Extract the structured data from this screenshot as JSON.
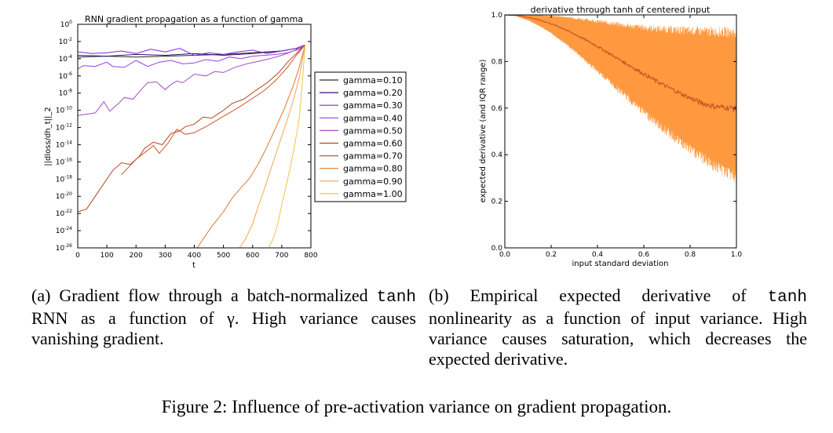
{
  "chart_data": [
    {
      "type": "line",
      "title": "RNN gradient propagation as a function of gamma",
      "xlabel": "t",
      "ylabel": "||dloss/dh_t||_2",
      "xlim": [
        0,
        800
      ],
      "ylim_log10": [
        -26,
        0
      ],
      "log_y": true,
      "grid": false,
      "legend_position": "right (outside plot)",
      "x_ticks": [
        "0",
        "100",
        "200",
        "300",
        "400",
        "500",
        "600",
        "700",
        "800"
      ],
      "y_ticks": [
        {
          "base": "10",
          "exp": "0"
        },
        {
          "base": "10",
          "exp": "-2"
        },
        {
          "base": "10",
          "exp": "-4"
        },
        {
          "base": "10",
          "exp": "-6"
        },
        {
          "base": "10",
          "exp": "-8"
        },
        {
          "base": "10",
          "exp": "-10"
        },
        {
          "base": "10",
          "exp": "-12"
        },
        {
          "base": "10",
          "exp": "-14"
        },
        {
          "base": "10",
          "exp": "-16"
        },
        {
          "base": "10",
          "exp": "-18"
        },
        {
          "base": "10",
          "exp": "-20"
        },
        {
          "base": "10",
          "exp": "-22"
        },
        {
          "base": "10",
          "exp": "-24"
        },
        {
          "base": "10",
          "exp": "-26"
        }
      ],
      "series": [
        {
          "name": "gamma=0.10",
          "color": "#2a2a2a",
          "x": [
            0,
            100,
            200,
            300,
            400,
            500,
            600,
            700,
            750,
            780
          ],
          "log10_y": [
            -3.8,
            -3.7,
            -3.8,
            -3.7,
            -3.6,
            -3.5,
            -3.3,
            -3.1,
            -2.8,
            -2.4
          ]
        },
        {
          "name": "gamma=0.20",
          "color": "#3b0f6f",
          "x": [
            0,
            100,
            200,
            300,
            400,
            500,
            600,
            700,
            750,
            780
          ],
          "log10_y": [
            -3.6,
            -3.7,
            -3.5,
            -3.6,
            -3.4,
            -3.6,
            -3.4,
            -3.1,
            -2.8,
            -2.4
          ]
        },
        {
          "name": "gamma=0.30",
          "color": "#7b2cd4",
          "x": [
            0,
            50,
            100,
            150,
            200,
            250,
            300,
            350,
            400,
            450,
            500,
            550,
            600,
            650,
            700,
            750,
            780
          ],
          "log10_y": [
            -3.2,
            -3.4,
            -3.3,
            -3.1,
            -3.4,
            -2.9,
            -3.2,
            -2.8,
            -3.6,
            -3.3,
            -3.5,
            -3.2,
            -3.0,
            -3.4,
            -3.1,
            -2.8,
            -2.4
          ]
        },
        {
          "name": "gamma=0.40",
          "color": "#9a3fe0",
          "x": [
            0,
            20,
            60,
            100,
            120,
            160,
            200,
            240,
            280,
            320,
            360,
            400,
            440,
            480,
            520,
            560,
            600,
            640,
            680,
            720,
            760,
            780
          ],
          "log10_y": [
            -5.2,
            -4.8,
            -4.9,
            -4.4,
            -4.9,
            -5.0,
            -4.2,
            -4.9,
            -4.4,
            -4.2,
            -4.6,
            -4.5,
            -4.1,
            -4.3,
            -3.8,
            -4.0,
            -3.7,
            -3.6,
            -3.5,
            -3.3,
            -2.9,
            -2.4
          ]
        },
        {
          "name": "gamma=0.50",
          "color": "#a54cc4",
          "x": [
            0,
            20,
            60,
            90,
            110,
            140,
            160,
            190,
            220,
            240,
            270,
            300,
            320,
            340,
            360,
            400,
            440,
            470,
            500,
            540,
            580,
            620,
            660,
            700,
            740,
            780
          ],
          "log10_y": [
            -10.6,
            -10.5,
            -10.3,
            -9.0,
            -10.1,
            -9.2,
            -8.5,
            -8.7,
            -7.5,
            -6.8,
            -6.7,
            -7.6,
            -7.0,
            -6.6,
            -6.8,
            -5.8,
            -6.0,
            -5.5,
            -5.6,
            -5.0,
            -4.6,
            -4.3,
            -4.0,
            -3.6,
            -3.1,
            -2.4
          ]
        },
        {
          "name": "gamma=0.60",
          "color": "#b5441e",
          "x": [
            0,
            30,
            60,
            90,
            120,
            150,
            180,
            210,
            230,
            260,
            290,
            320,
            350,
            370,
            400,
            430,
            460,
            500,
            530,
            570,
            610,
            650,
            690,
            720,
            750,
            780
          ],
          "log10_y": [
            -21.8,
            -21.5,
            -20.0,
            -18.5,
            -17.0,
            -16.1,
            -16.3,
            -15.4,
            -14.4,
            -13.7,
            -14.0,
            -12.7,
            -12.4,
            -11.9,
            -11.6,
            -10.8,
            -10.9,
            -10.0,
            -9.2,
            -8.7,
            -7.7,
            -6.8,
            -5.6,
            -4.4,
            -3.4,
            -2.4
          ]
        },
        {
          "name": "gamma=0.70",
          "color": "#c85a28",
          "x": [
            150,
            200,
            230,
            260,
            280,
            310,
            340,
            370,
            400,
            440,
            480,
            520,
            560,
            600,
            640,
            680,
            720,
            750,
            780
          ],
          "log10_y": [
            -17.5,
            -15.7,
            -14.9,
            -14.1,
            -15.0,
            -13.8,
            -12.2,
            -12.8,
            -12.6,
            -11.9,
            -11.1,
            -10.3,
            -9.5,
            -8.6,
            -7.7,
            -6.5,
            -5.0,
            -3.6,
            -2.4
          ]
        },
        {
          "name": "gamma=0.80",
          "color": "#d97a35",
          "x": [
            410,
            430,
            460,
            500,
            530,
            560,
            590,
            620,
            650,
            680,
            710,
            740,
            760,
            780
          ],
          "log10_y": [
            -26.0,
            -25.0,
            -23.5,
            -21.8,
            -20.2,
            -19.0,
            -17.9,
            -16.2,
            -14.2,
            -12.0,
            -9.7,
            -7.1,
            -5.0,
            -2.4
          ]
        },
        {
          "name": "gamma=0.90",
          "color": "#eea847",
          "x": [
            555,
            575,
            600,
            620,
            640,
            660,
            680,
            700,
            720,
            740,
            760,
            780
          ],
          "log10_y": [
            -26.0,
            -25.0,
            -23.2,
            -21.1,
            -19.2,
            -17.1,
            -15.1,
            -13.0,
            -11.0,
            -8.8,
            -6.2,
            -2.4
          ]
        },
        {
          "name": "gamma=1.00",
          "color": "#f3c44a",
          "x": [
            655,
            670,
            685,
            700,
            715,
            730,
            745,
            760,
            770,
            780
          ],
          "log10_y": [
            -26.0,
            -25.0,
            -23.4,
            -21.0,
            -18.8,
            -16.5,
            -13.9,
            -11.0,
            -7.0,
            -2.4
          ]
        }
      ]
    },
    {
      "type": "area",
      "title": "derivative through tanh of centered input",
      "xlabel": "input standard deviation",
      "ylabel": "expected derivative (and IQR range)",
      "xlim": [
        0,
        1
      ],
      "ylim": [
        0,
        1
      ],
      "grid": false,
      "x_ticks": [
        "0.0",
        "0.2",
        "0.4",
        "0.6",
        "0.8",
        "1.0"
      ],
      "y_ticks": [
        "0.0",
        "0.2",
        "0.4",
        "0.6",
        "0.8",
        "1.0"
      ],
      "fill_color": "#ff9940",
      "line_color": "#c7571f",
      "x": [
        0.0,
        0.05,
        0.1,
        0.15,
        0.2,
        0.25,
        0.3,
        0.35,
        0.4,
        0.45,
        0.5,
        0.55,
        0.6,
        0.65,
        0.7,
        0.75,
        0.8,
        0.85,
        0.9,
        0.95,
        1.0
      ],
      "median": [
        1.0,
        0.998,
        0.99,
        0.978,
        0.962,
        0.942,
        0.918,
        0.892,
        0.865,
        0.835,
        0.805,
        0.776,
        0.746,
        0.718,
        0.692,
        0.667,
        0.643,
        0.622,
        0.608,
        0.603,
        0.598
      ],
      "iqr_upper": [
        1.0,
        1.0,
        0.999,
        0.997,
        0.993,
        0.988,
        0.981,
        0.973,
        0.965,
        0.956,
        0.947,
        0.939,
        0.932,
        0.926,
        0.921,
        0.917,
        0.913,
        0.91,
        0.907,
        0.905,
        0.902
      ],
      "iqr_lower": [
        1.0,
        0.995,
        0.978,
        0.955,
        0.925,
        0.89,
        0.852,
        0.81,
        0.768,
        0.726,
        0.683,
        0.641,
        0.599,
        0.558,
        0.519,
        0.481,
        0.445,
        0.412,
        0.382,
        0.356,
        0.33
      ]
    }
  ],
  "captions": {
    "a": {
      "pre": "(a) Gradient flow through a batch-normalized ",
      "mono": "tanh",
      "post": " RNN as a function of γ. High variance causes vanishing gradient."
    },
    "b": {
      "pre": "(b) Empirical expected derivative of ",
      "mono": "tanh",
      "post": " nonlinearity as a function of input variance. High variance causes saturation, which decreases the expected derivative."
    },
    "figure": "Figure 2: Influence of pre-activation variance on gradient propagation."
  }
}
